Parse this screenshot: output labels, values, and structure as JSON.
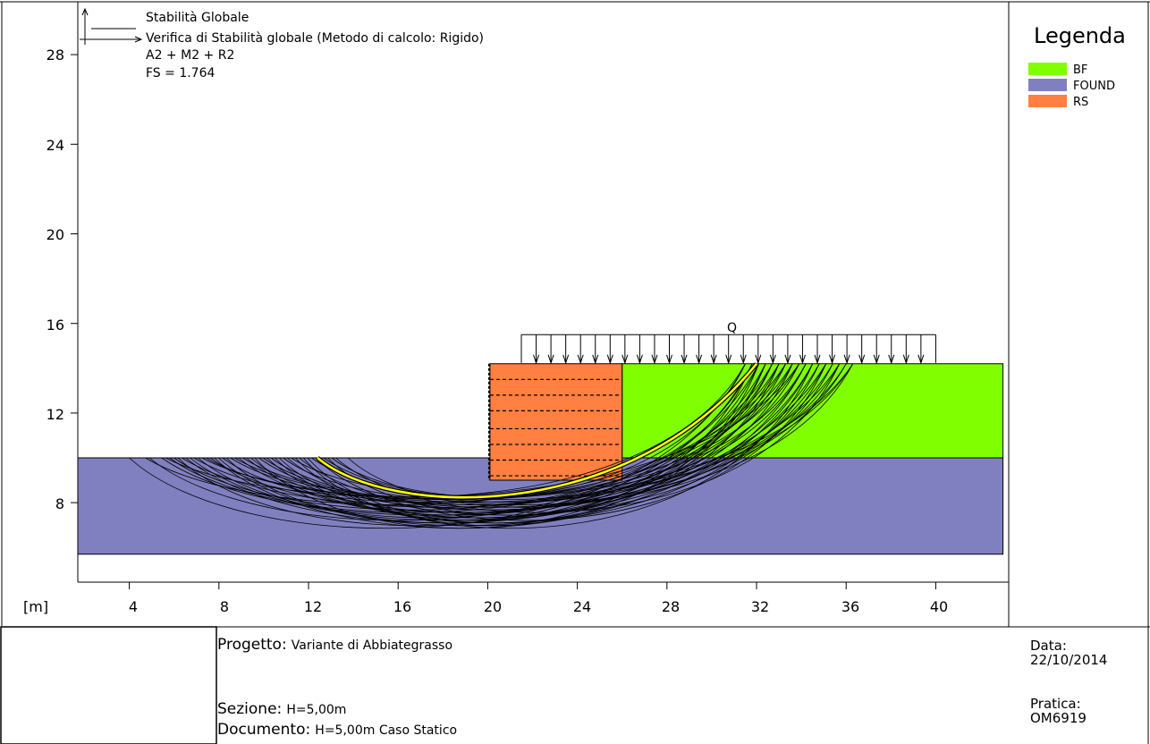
{
  "header": {
    "title": "Stabilità Globale",
    "subtitle": "Verifica di Stabilità globale (Metodo di calcolo: Rigido)",
    "combination": "A2 + M2 + R2",
    "fs": "FS = 1.764"
  },
  "legend": {
    "title": "Legenda",
    "items": [
      {
        "name": "BF",
        "color": "#80ff00"
      },
      {
        "name": "FOUND",
        "color": "#8080c0"
      },
      {
        "name": "RS",
        "color": "#ff8040"
      }
    ]
  },
  "load_label": "Q",
  "axis_unit": "[m]",
  "x_ticks": [
    "4",
    "8",
    "12",
    "16",
    "20",
    "24",
    "28",
    "32",
    "36",
    "40"
  ],
  "y_ticks": [
    "8",
    "12",
    "16",
    "20",
    "24",
    "28"
  ],
  "title_block": {
    "progetto_key": "Progetto:",
    "progetto_value": "Variante di Abbiategrasso",
    "sezione_key": "Sezione:",
    "sezione_value": "H=5,00m",
    "documento_key": "Documento:",
    "documento_value": "H=5,00m Caso Statico",
    "data_key": "Data:",
    "data_value": "22/10/2014",
    "pratica_key": "Pratica:",
    "pratica_value": "OM6919"
  },
  "chart_data": {
    "type": "diagram",
    "xlim": [
      1.7,
      43.0
    ],
    "ylim": [
      5.7,
      29.6
    ],
    "layers": [
      {
        "name": "FOUND",
        "polygon": [
          [
            1.7,
            10.0
          ],
          [
            43.0,
            10.0
          ],
          [
            43.0,
            5.7
          ],
          [
            1.7,
            5.7
          ]
        ]
      },
      {
        "name": "BF",
        "polygon": [
          [
            26.0,
            14.2
          ],
          [
            43.0,
            14.2
          ],
          [
            43.0,
            10.0
          ],
          [
            26.0,
            10.0
          ]
        ]
      },
      {
        "name": "RS",
        "polygon": [
          [
            20.1,
            14.2
          ],
          [
            26.0,
            14.2
          ],
          [
            26.0,
            9.0
          ],
          [
            20.1,
            9.0
          ]
        ]
      }
    ],
    "reinforcement_levels": [
      13.5,
      12.8,
      12.1,
      11.3,
      10.6,
      9.9,
      9.2
    ],
    "load": {
      "x_start": 21.5,
      "x_end": 40.0,
      "y": 15.5,
      "arrow_count": 29
    },
    "critical_surface": {
      "x_start": 12.4,
      "x_end": 32.0,
      "y_end": 14.2,
      "y_min": 7.6
    },
    "fs": 1.764
  }
}
